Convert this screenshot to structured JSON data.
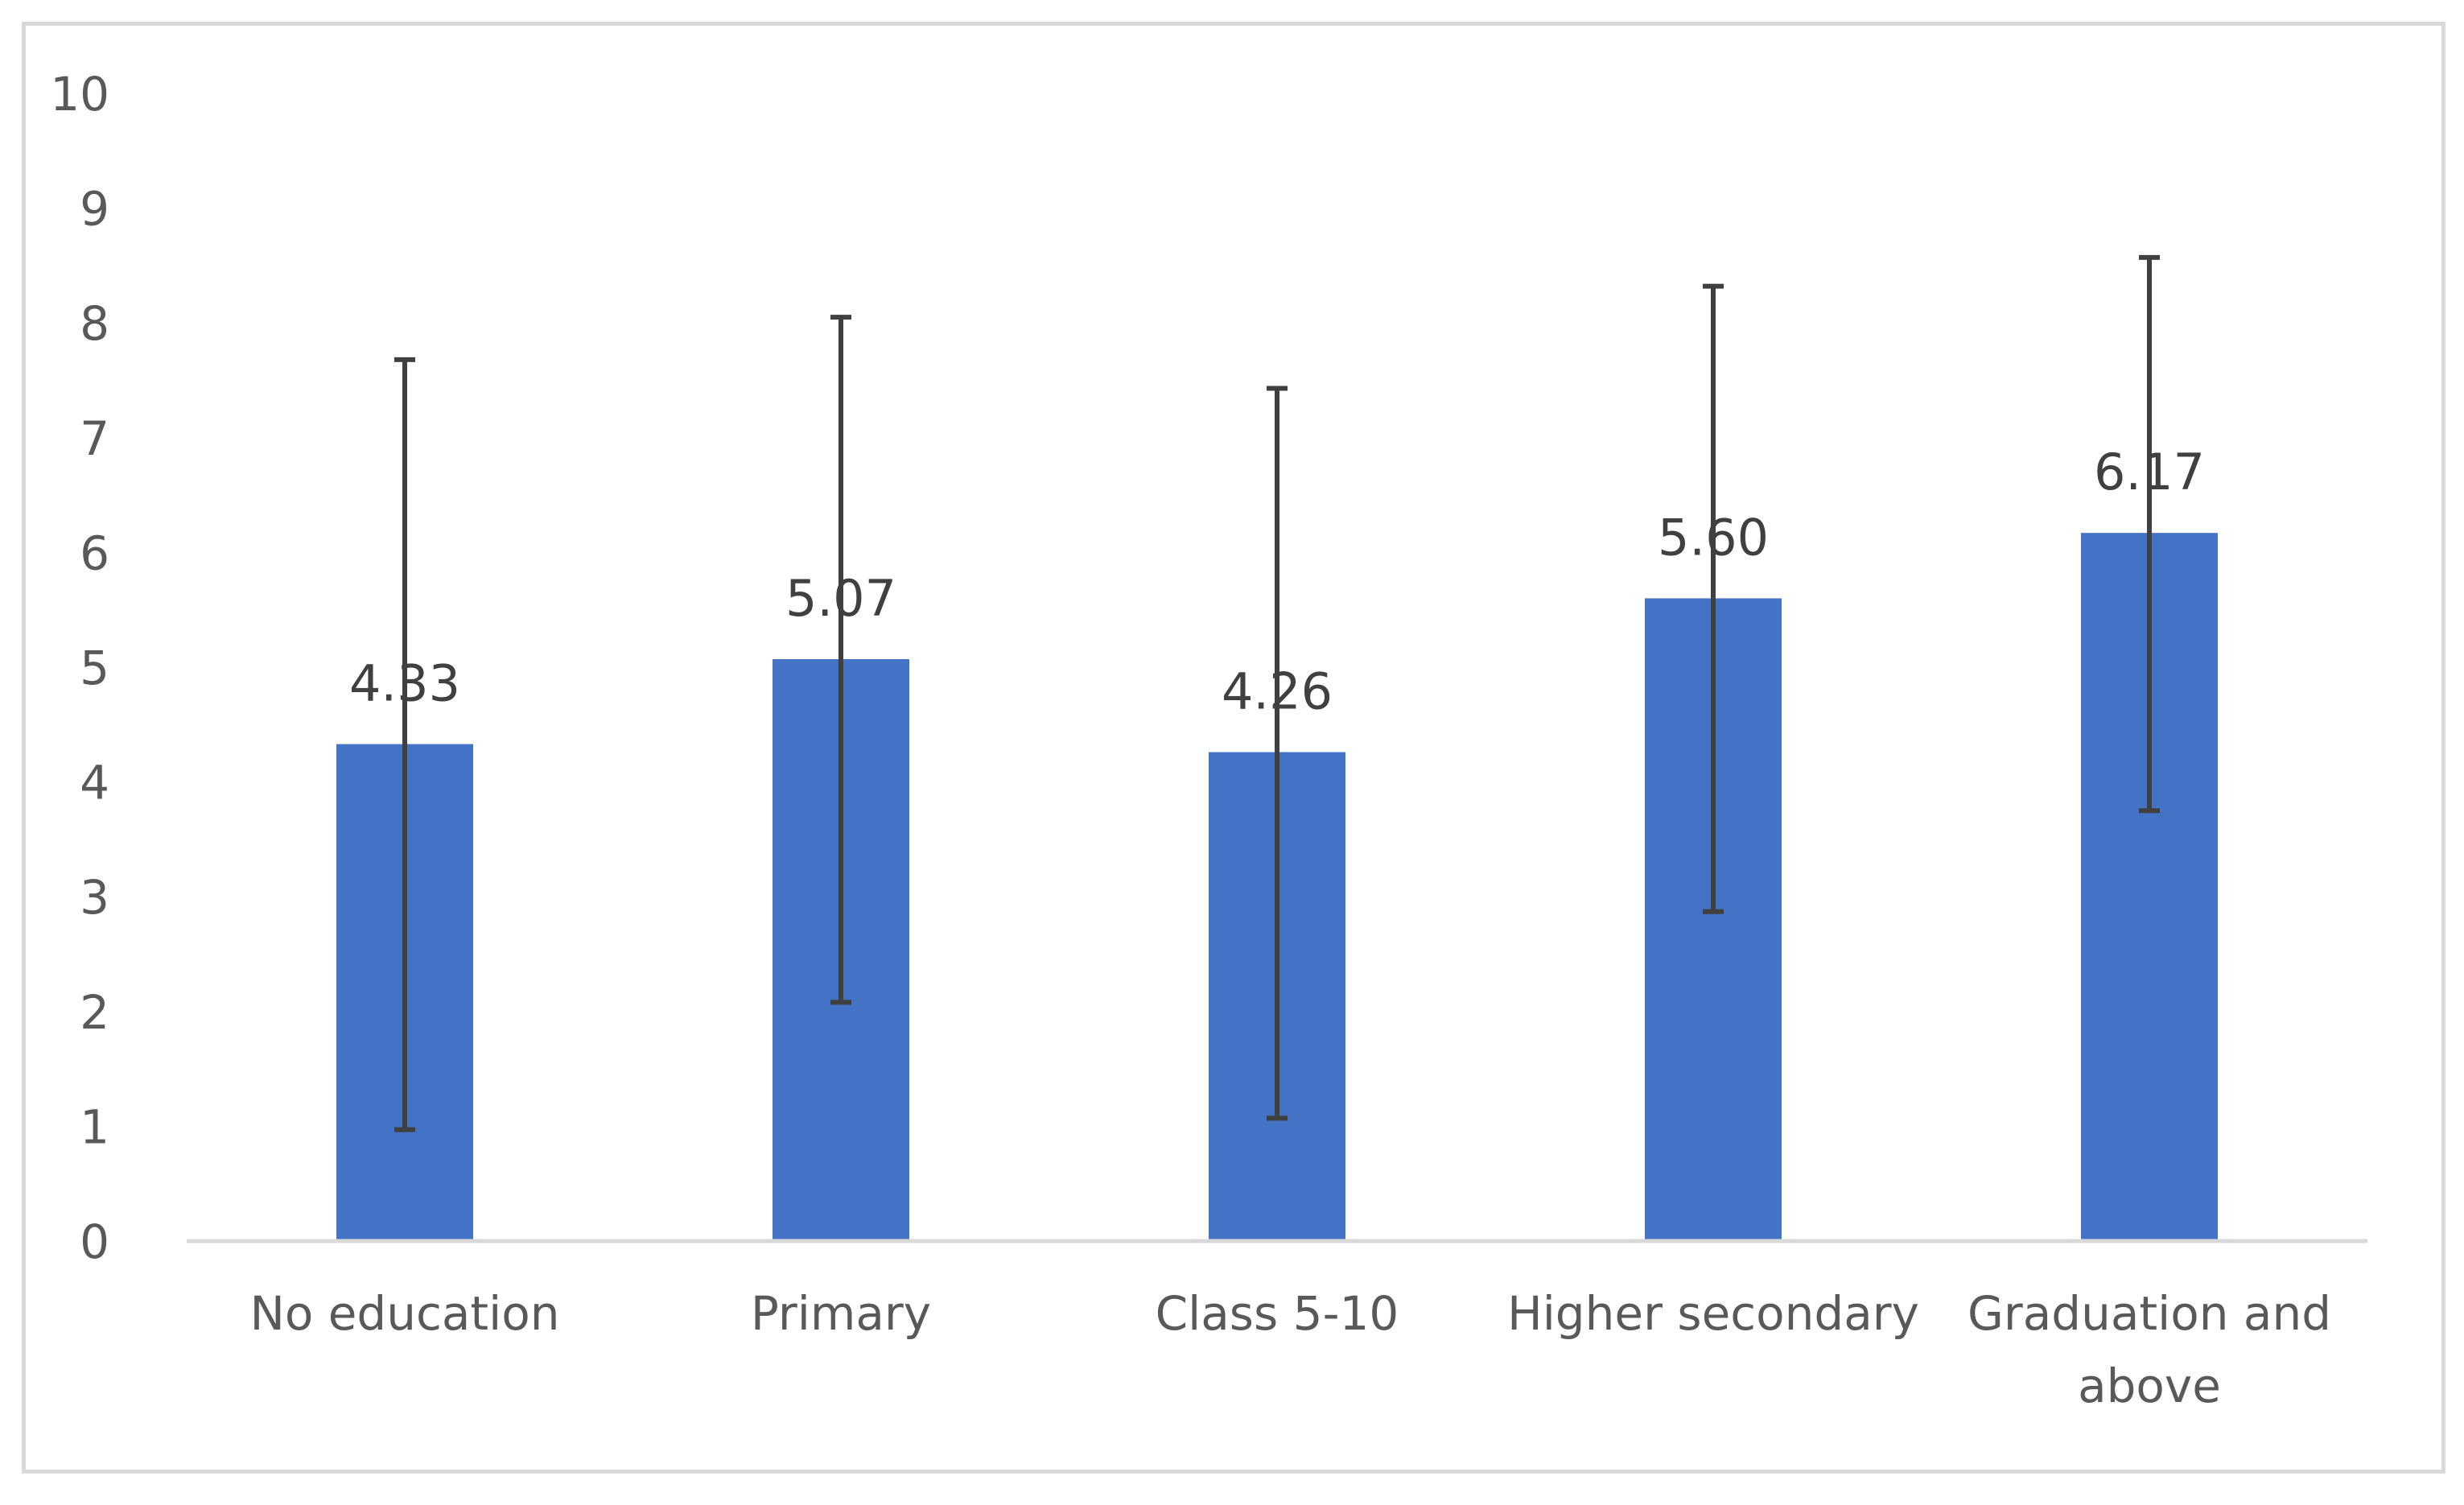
{
  "chart_data": {
    "type": "bar",
    "title": "",
    "xlabel": "",
    "ylabel": "",
    "categories": [
      [
        "No education"
      ],
      [
        "Primary"
      ],
      [
        "Class 5-10"
      ],
      [
        "Higher secondary"
      ],
      [
        "Graduation and",
        "above"
      ]
    ],
    "values": [
      4.33,
      5.07,
      4.26,
      5.6,
      6.17
    ],
    "value_labels": [
      "4.33",
      "5.07",
      "4.26",
      "5.60",
      "6.17"
    ],
    "error_bars": {
      "lower": [
        0.97,
        2.08,
        1.07,
        2.87,
        3.75
      ],
      "upper": [
        7.68,
        8.05,
        7.43,
        8.32,
        8.57
      ]
    },
    "ylim": [
      0,
      10
    ],
    "yticks": [
      0,
      1,
      2,
      3,
      4,
      5,
      6,
      7,
      8,
      9,
      10
    ],
    "grid": false,
    "legend": "none",
    "colors": {
      "bar": "#4472c4",
      "error_bar": "#404040",
      "axis": "#d9d9d9",
      "frame": "#d9d9d9"
    }
  }
}
